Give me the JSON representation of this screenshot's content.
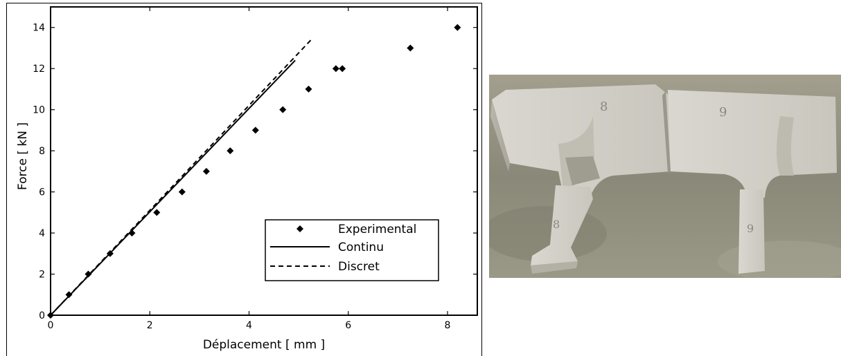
{
  "chart_data": {
    "type": "scatter",
    "xlabel": "Déplacement  [ mm ]",
    "ylabel": "Force  [ kN ]",
    "xlim": [
      0,
      8.6
    ],
    "ylim": [
      0,
      15
    ],
    "xticks": [
      0,
      2,
      4,
      6,
      8
    ],
    "yticks": [
      0,
      2,
      4,
      6,
      8,
      10,
      12,
      14
    ],
    "grid": false,
    "legend_position": "lower-right",
    "series": [
      {
        "name": "Experimental",
        "style": "diamond-marker",
        "x": [
          0,
          0.37,
          0.76,
          1.2,
          1.64,
          2.14,
          2.65,
          3.14,
          3.62,
          4.13,
          4.68,
          5.2,
          5.75,
          5.88,
          7.25,
          8.2
        ],
        "y": [
          0,
          1,
          2,
          3,
          4,
          5,
          6,
          7,
          8,
          9,
          10,
          11,
          12,
          12,
          13,
          14
        ]
      },
      {
        "name": "Continu",
        "style": "solid-line",
        "x": [
          0,
          4.93
        ],
        "y": [
          0,
          12.4
        ]
      },
      {
        "name": "Discret",
        "style": "dashed-line",
        "x": [
          0,
          5.25
        ],
        "y": [
          0,
          13.4
        ]
      }
    ]
  },
  "colors": {
    "ink": "#000000",
    "background": "#ffffff"
  },
  "photo": {
    "labels": [
      "8",
      "9",
      "8",
      "9"
    ]
  }
}
